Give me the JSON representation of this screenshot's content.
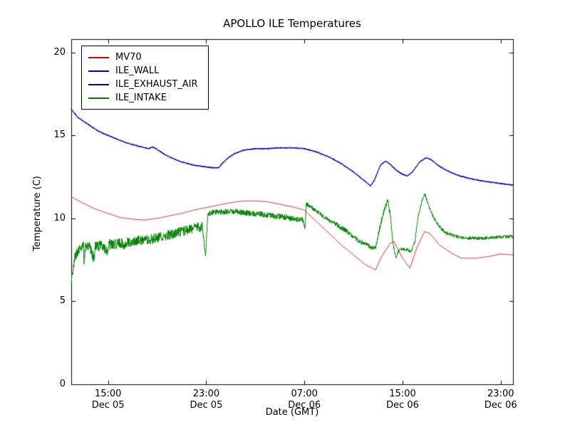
{
  "chart_data": {
    "type": "line",
    "title": "APOLLO ILE Temperatures",
    "xlabel": "Date (GMT)",
    "ylabel": "Temperature (C)",
    "ylim": [
      0,
      20
    ],
    "yticks": [
      0,
      5,
      10,
      15,
      20
    ],
    "x_unit": "hours since Dec 05 12:00 GMT",
    "xlim": [
      0,
      36
    ],
    "xticks": [
      {
        "t": 3,
        "time": "15:00",
        "date": "Dec 05"
      },
      {
        "t": 11,
        "time": "23:00",
        "date": "Dec 05"
      },
      {
        "t": 19,
        "time": "07:00",
        "date": "Dec 06"
      },
      {
        "t": 27,
        "time": "15:00",
        "date": "Dec 06"
      },
      {
        "t": 35,
        "time": "23:00",
        "date": "Dec 06"
      }
    ],
    "grid": false,
    "legend_position": "upper left",
    "draw_order": [
      0,
      2,
      1,
      3
    ],
    "series": [
      {
        "name": "MV70",
        "color": "#dd0000",
        "noise": 0,
        "points": [
          [
            0,
            11.3
          ],
          [
            1,
            10.9
          ],
          [
            2,
            10.55
          ],
          [
            3,
            10.3
          ],
          [
            4,
            10.05
          ],
          [
            5,
            9.95
          ],
          [
            6,
            9.9
          ],
          [
            7,
            10.0
          ],
          [
            8,
            10.15
          ],
          [
            9,
            10.3
          ],
          [
            10,
            10.5
          ],
          [
            11,
            10.65
          ],
          [
            12,
            10.8
          ],
          [
            13,
            10.95
          ],
          [
            14,
            11.05
          ],
          [
            15,
            11.05
          ],
          [
            16,
            11.0
          ],
          [
            17,
            10.85
          ],
          [
            18,
            10.7
          ],
          [
            19,
            10.5
          ],
          [
            20,
            9.8
          ],
          [
            21,
            9.1
          ],
          [
            22,
            8.4
          ],
          [
            23,
            7.8
          ],
          [
            24,
            7.2
          ],
          [
            24.8,
            6.9
          ],
          [
            25.3,
            7.7
          ],
          [
            26,
            8.5
          ],
          [
            26.3,
            8.6
          ],
          [
            27,
            7.6
          ],
          [
            27.6,
            7.0
          ],
          [
            28.2,
            8.3
          ],
          [
            28.8,
            9.2
          ],
          [
            29.2,
            9.1
          ],
          [
            30,
            8.4
          ],
          [
            31,
            7.9
          ],
          [
            31.8,
            7.6
          ],
          [
            33,
            7.6
          ],
          [
            34,
            7.7
          ],
          [
            35,
            7.85
          ],
          [
            36,
            7.8
          ]
        ]
      },
      {
        "name": "ILE_WALL",
        "color": "#0000dd",
        "noise": 0.035,
        "points": [
          [
            0,
            16.6
          ],
          [
            0.5,
            16.1
          ],
          [
            1,
            15.85
          ],
          [
            1.5,
            15.6
          ],
          [
            2,
            15.35
          ],
          [
            2.5,
            15.15
          ],
          [
            3,
            15.0
          ],
          [
            3.5,
            14.85
          ],
          [
            4,
            14.7
          ],
          [
            4.5,
            14.55
          ],
          [
            5,
            14.45
          ],
          [
            5.5,
            14.35
          ],
          [
            6,
            14.25
          ],
          [
            6.3,
            14.2
          ],
          [
            6.6,
            14.3
          ],
          [
            6.9,
            14.2
          ],
          [
            7.5,
            13.9
          ],
          [
            8,
            13.7
          ],
          [
            8.5,
            13.55
          ],
          [
            9,
            13.4
          ],
          [
            9.5,
            13.3
          ],
          [
            10,
            13.2
          ],
          [
            10.5,
            13.15
          ],
          [
            11,
            13.1
          ],
          [
            11.5,
            13.05
          ],
          [
            12,
            13.05
          ],
          [
            12.3,
            13.3
          ],
          [
            12.8,
            13.65
          ],
          [
            13.3,
            13.9
          ],
          [
            14,
            14.1
          ],
          [
            14.5,
            14.15
          ],
          [
            15,
            14.2
          ],
          [
            16,
            14.2
          ],
          [
            17,
            14.25
          ],
          [
            18,
            14.25
          ],
          [
            19,
            14.2
          ],
          [
            19.5,
            14.1
          ],
          [
            20,
            14.0
          ],
          [
            20.5,
            13.85
          ],
          [
            21,
            13.7
          ],
          [
            21.5,
            13.5
          ],
          [
            22,
            13.3
          ],
          [
            22.5,
            13.05
          ],
          [
            23,
            12.8
          ],
          [
            23.5,
            12.5
          ],
          [
            24,
            12.2
          ],
          [
            24.4,
            11.95
          ],
          [
            24.7,
            12.3
          ],
          [
            25.2,
            13.2
          ],
          [
            25.6,
            13.45
          ],
          [
            26,
            13.25
          ],
          [
            26.5,
            12.9
          ],
          [
            27,
            12.65
          ],
          [
            27.4,
            12.55
          ],
          [
            27.8,
            12.8
          ],
          [
            28.4,
            13.4
          ],
          [
            28.9,
            13.65
          ],
          [
            29.3,
            13.55
          ],
          [
            29.8,
            13.25
          ],
          [
            30.3,
            13.0
          ],
          [
            31,
            12.75
          ],
          [
            31.7,
            12.55
          ],
          [
            32.5,
            12.4
          ],
          [
            33.5,
            12.25
          ],
          [
            34.5,
            12.15
          ],
          [
            35.5,
            12.05
          ],
          [
            36,
            12.0
          ]
        ]
      },
      {
        "name": "ILE_EXHAUST_AIR",
        "color": "#000080",
        "noise": 0.035,
        "note": "coincides with ILE_WALL in the plot (hidden beneath it)",
        "points": [
          [
            0,
            16.6
          ],
          [
            0.5,
            16.1
          ],
          [
            1,
            15.85
          ],
          [
            1.5,
            15.6
          ],
          [
            2,
            15.35
          ],
          [
            2.5,
            15.15
          ],
          [
            3,
            15.0
          ],
          [
            3.5,
            14.85
          ],
          [
            4,
            14.7
          ],
          [
            4.5,
            14.55
          ],
          [
            5,
            14.45
          ],
          [
            5.5,
            14.35
          ],
          [
            6,
            14.25
          ],
          [
            6.3,
            14.2
          ],
          [
            6.6,
            14.3
          ],
          [
            6.9,
            14.2
          ],
          [
            7.5,
            13.9
          ],
          [
            8,
            13.7
          ],
          [
            8.5,
            13.55
          ],
          [
            9,
            13.4
          ],
          [
            9.5,
            13.3
          ],
          [
            10,
            13.2
          ],
          [
            10.5,
            13.15
          ],
          [
            11,
            13.1
          ],
          [
            11.5,
            13.05
          ],
          [
            12,
            13.05
          ],
          [
            12.3,
            13.3
          ],
          [
            12.8,
            13.65
          ],
          [
            13.3,
            13.9
          ],
          [
            14,
            14.1
          ],
          [
            14.5,
            14.15
          ],
          [
            15,
            14.2
          ],
          [
            16,
            14.2
          ],
          [
            17,
            14.25
          ],
          [
            18,
            14.25
          ],
          [
            19,
            14.2
          ],
          [
            19.5,
            14.1
          ],
          [
            20,
            14.0
          ],
          [
            20.5,
            13.85
          ],
          [
            21,
            13.7
          ],
          [
            21.5,
            13.5
          ],
          [
            22,
            13.3
          ],
          [
            22.5,
            13.05
          ],
          [
            23,
            12.8
          ],
          [
            23.5,
            12.5
          ],
          [
            24,
            12.2
          ],
          [
            24.4,
            11.95
          ],
          [
            24.7,
            12.3
          ],
          [
            25.2,
            13.2
          ],
          [
            25.6,
            13.45
          ],
          [
            26,
            13.25
          ],
          [
            26.5,
            12.9
          ],
          [
            27,
            12.65
          ],
          [
            27.4,
            12.55
          ],
          [
            27.8,
            12.8
          ],
          [
            28.4,
            13.4
          ],
          [
            28.9,
            13.65
          ],
          [
            29.3,
            13.55
          ],
          [
            29.8,
            13.25
          ],
          [
            30.3,
            13.0
          ],
          [
            31,
            12.75
          ],
          [
            31.7,
            12.55
          ],
          [
            32.5,
            12.4
          ],
          [
            33.5,
            12.25
          ],
          [
            34.5,
            12.15
          ],
          [
            35.5,
            12.05
          ],
          [
            36,
            12.0
          ]
        ]
      },
      {
        "name": "ILE_INTAKE",
        "color": "#008000",
        "noise": [
          [
            0,
            11,
            0.3
          ],
          [
            11,
            19,
            0.18
          ],
          [
            19,
            26,
            0.14
          ],
          [
            26,
            36,
            0.1
          ]
        ],
        "points": [
          [
            0,
            6.2
          ],
          [
            0.15,
            7.0
          ],
          [
            0.3,
            7.7
          ],
          [
            0.5,
            8.0
          ],
          [
            0.8,
            8.2
          ],
          [
            1.0,
            8.3
          ],
          [
            1.05,
            7.3
          ],
          [
            1.15,
            8.3
          ],
          [
            1.5,
            8.3
          ],
          [
            1.85,
            7.5
          ],
          [
            1.95,
            8.3
          ],
          [
            2.5,
            8.35
          ],
          [
            3.0,
            7.9
          ],
          [
            3.1,
            8.45
          ],
          [
            3.5,
            8.45
          ],
          [
            4.2,
            8.5
          ],
          [
            4.3,
            7.9
          ],
          [
            4.4,
            8.55
          ],
          [
            5.5,
            8.65
          ],
          [
            6.5,
            8.75
          ],
          [
            7.5,
            8.9
          ],
          [
            8.5,
            9.1
          ],
          [
            9.5,
            9.3
          ],
          [
            10.3,
            9.45
          ],
          [
            10.7,
            9.5
          ],
          [
            10.85,
            8.4
          ],
          [
            10.95,
            7.9
          ],
          [
            11.05,
            9.2
          ],
          [
            11.15,
            10.25
          ],
          [
            11.5,
            10.35
          ],
          [
            12.5,
            10.4
          ],
          [
            13.5,
            10.4
          ],
          [
            14.5,
            10.3
          ],
          [
            15.5,
            10.25
          ],
          [
            16.5,
            10.15
          ],
          [
            17.5,
            10.05
          ],
          [
            18.5,
            9.95
          ],
          [
            18.9,
            9.9
          ],
          [
            19.05,
            9.4
          ],
          [
            19.15,
            10.9
          ],
          [
            19.5,
            10.7
          ],
          [
            20,
            10.4
          ],
          [
            20.5,
            10.15
          ],
          [
            21,
            9.9
          ],
          [
            21.5,
            9.7
          ],
          [
            22,
            9.45
          ],
          [
            22.5,
            9.2
          ],
          [
            23,
            8.9
          ],
          [
            23.5,
            8.6
          ],
          [
            24,
            8.45
          ],
          [
            24.5,
            8.25
          ],
          [
            24.8,
            8.2
          ],
          [
            25.1,
            9.3
          ],
          [
            25.5,
            10.5
          ],
          [
            25.8,
            11.1
          ],
          [
            26,
            10.2
          ],
          [
            26.2,
            8.6
          ],
          [
            26.45,
            7.6
          ],
          [
            26.7,
            8.1
          ],
          [
            27.2,
            8.15
          ],
          [
            27.7,
            8.0
          ],
          [
            28,
            8.6
          ],
          [
            28.3,
            10.2
          ],
          [
            28.6,
            11.1
          ],
          [
            28.8,
            11.5
          ],
          [
            29.1,
            10.8
          ],
          [
            29.5,
            10.1
          ],
          [
            30,
            9.5
          ],
          [
            30.5,
            9.15
          ],
          [
            31,
            9.0
          ],
          [
            31.7,
            8.85
          ],
          [
            32.5,
            8.8
          ],
          [
            33.5,
            8.8
          ],
          [
            34.5,
            8.85
          ],
          [
            35.5,
            8.9
          ],
          [
            36,
            8.9
          ]
        ]
      }
    ]
  }
}
